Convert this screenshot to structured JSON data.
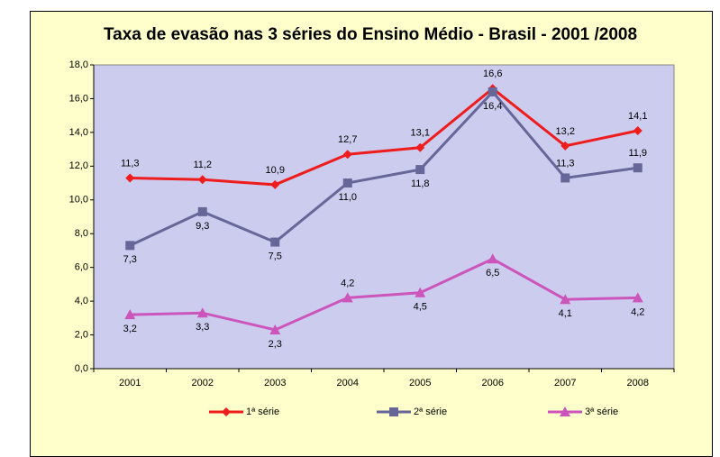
{
  "chart_data": {
    "type": "line",
    "title": "Taxa de evasão nas 3 séries do Ensino Médio - Brasil - 2001 /2008",
    "categories": [
      "2001",
      "2002",
      "2003",
      "2004",
      "2005",
      "2006",
      "2007",
      "2008"
    ],
    "series": [
      {
        "name": "1ª série",
        "color": "#ee1c1c",
        "marker": "diamond",
        "values": [
          11.3,
          11.2,
          10.9,
          12.7,
          13.1,
          16.6,
          13.2,
          14.1
        ],
        "value_labels": [
          "11,3",
          "11,2",
          "10,9",
          "12,7",
          "13,1",
          "16,6",
          "13,2",
          "14,1"
        ]
      },
      {
        "name": "2ª série",
        "color": "#666699",
        "marker": "square",
        "values": [
          7.3,
          9.3,
          7.5,
          11.0,
          11.8,
          16.4,
          11.3,
          11.9
        ],
        "value_labels": [
          "7,3",
          "9,3",
          "7,5",
          "11,0",
          "11,8",
          "16,4",
          "11,3",
          "11,9"
        ]
      },
      {
        "name": "3ª série",
        "color": "#cc55bb",
        "marker": "triangle",
        "values": [
          3.2,
          3.3,
          2.3,
          4.2,
          4.5,
          6.5,
          4.1,
          4.2
        ],
        "value_labels": [
          "3,2",
          "3,3",
          "2,3",
          "4,2",
          "4,5",
          "6,5",
          "4,1",
          "4,2"
        ]
      }
    ],
    "ylim": [
      0,
      18
    ],
    "yticks": [
      {
        "value": 0,
        "label": "0,0"
      },
      {
        "value": 2,
        "label": "2,0"
      },
      {
        "value": 4,
        "label": "4,0"
      },
      {
        "value": 6,
        "label": "6,0"
      },
      {
        "value": 8,
        "label": "8,0"
      },
      {
        "value": 10,
        "label": "10,0"
      },
      {
        "value": 12,
        "label": "12,0"
      },
      {
        "value": 14,
        "label": "14,0"
      },
      {
        "value": 16,
        "label": "16,0"
      },
      {
        "value": 18,
        "label": "18,0"
      }
    ],
    "grid": false,
    "legend": "bottom"
  }
}
